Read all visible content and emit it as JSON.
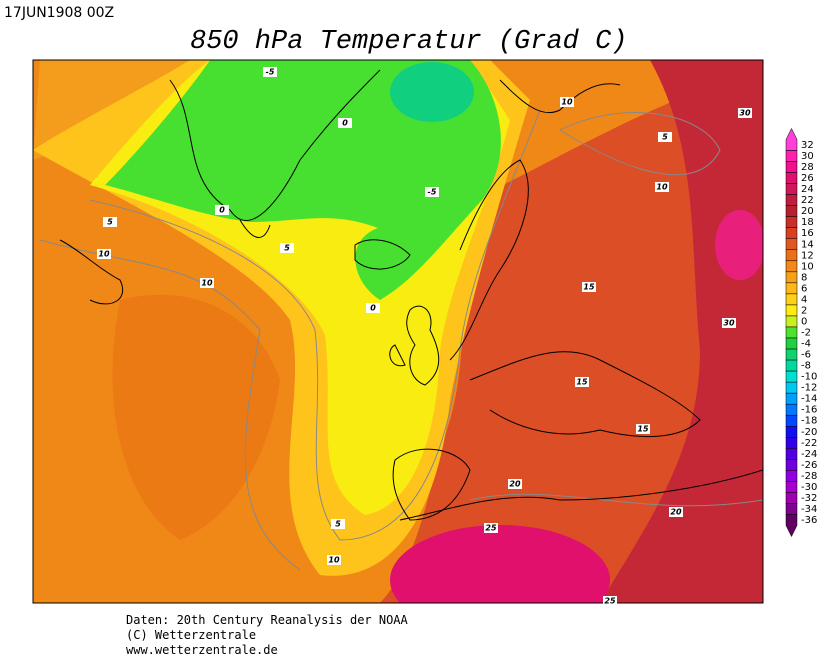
{
  "header": {
    "date": "17JUN1908 00Z",
    "title": "850 hPa Temperatur (Grad C)"
  },
  "colorbar": [
    {
      "label": "32",
      "color": "#ff40d8"
    },
    {
      "label": "30",
      "color": "#ff20b0"
    },
    {
      "label": "28",
      "color": "#f01090"
    },
    {
      "label": "26",
      "color": "#e01070"
    },
    {
      "label": "24",
      "color": "#d01858"
    },
    {
      "label": "22",
      "color": "#c01c40"
    },
    {
      "label": "20",
      "color": "#b82030"
    },
    {
      "label": "18",
      "color": "#c83028"
    },
    {
      "label": "16",
      "color": "#d84020"
    },
    {
      "label": "14",
      "color": "#e05820"
    },
    {
      "label": "12",
      "color": "#ec7018"
    },
    {
      "label": "10",
      "color": "#f48818"
    },
    {
      "label": "8",
      "color": "#f8a018"
    },
    {
      "label": "6",
      "color": "#ffb818"
    },
    {
      "label": "4",
      "color": "#ffd018"
    },
    {
      "label": "2",
      "color": "#ffec10"
    },
    {
      "label": "0",
      "color": "#c8f020"
    },
    {
      "label": "-2",
      "color": "#50e030"
    },
    {
      "label": "-4",
      "color": "#20d040"
    },
    {
      "label": "-6",
      "color": "#10d070"
    },
    {
      "label": "-8",
      "color": "#00d8a0"
    },
    {
      "label": "-10",
      "color": "#00e0d0"
    },
    {
      "label": "-12",
      "color": "#00c8f0"
    },
    {
      "label": "-14",
      "color": "#00a0ff"
    },
    {
      "label": "-16",
      "color": "#0078ff"
    },
    {
      "label": "-18",
      "color": "#0048ff"
    },
    {
      "label": "-20",
      "color": "#1010f0"
    },
    {
      "label": "-22",
      "color": "#3000e8"
    },
    {
      "label": "-24",
      "color": "#5000e0"
    },
    {
      "label": "-26",
      "color": "#7000e0"
    },
    {
      "label": "-28",
      "color": "#9000e0"
    },
    {
      "label": "-30",
      "color": "#a800d0"
    },
    {
      "label": "-32",
      "color": "#a000b0"
    },
    {
      "label": "-34",
      "color": "#800090"
    },
    {
      "label": "-36",
      "color": "#600060"
    }
  ],
  "contour_labels": [
    "-5",
    "0",
    "-5",
    "0",
    "5",
    "0",
    "5",
    "10",
    "10",
    "10",
    "5",
    "10",
    "30",
    "15",
    "30",
    "15",
    "15",
    "20",
    "25",
    "20",
    "5",
    "10",
    "25"
  ],
  "footer": [
    "Daten: 20th Century Reanalysis der NOAA",
    "(C) Wetterzentrale",
    "www.wetterzentrale.de"
  ]
}
